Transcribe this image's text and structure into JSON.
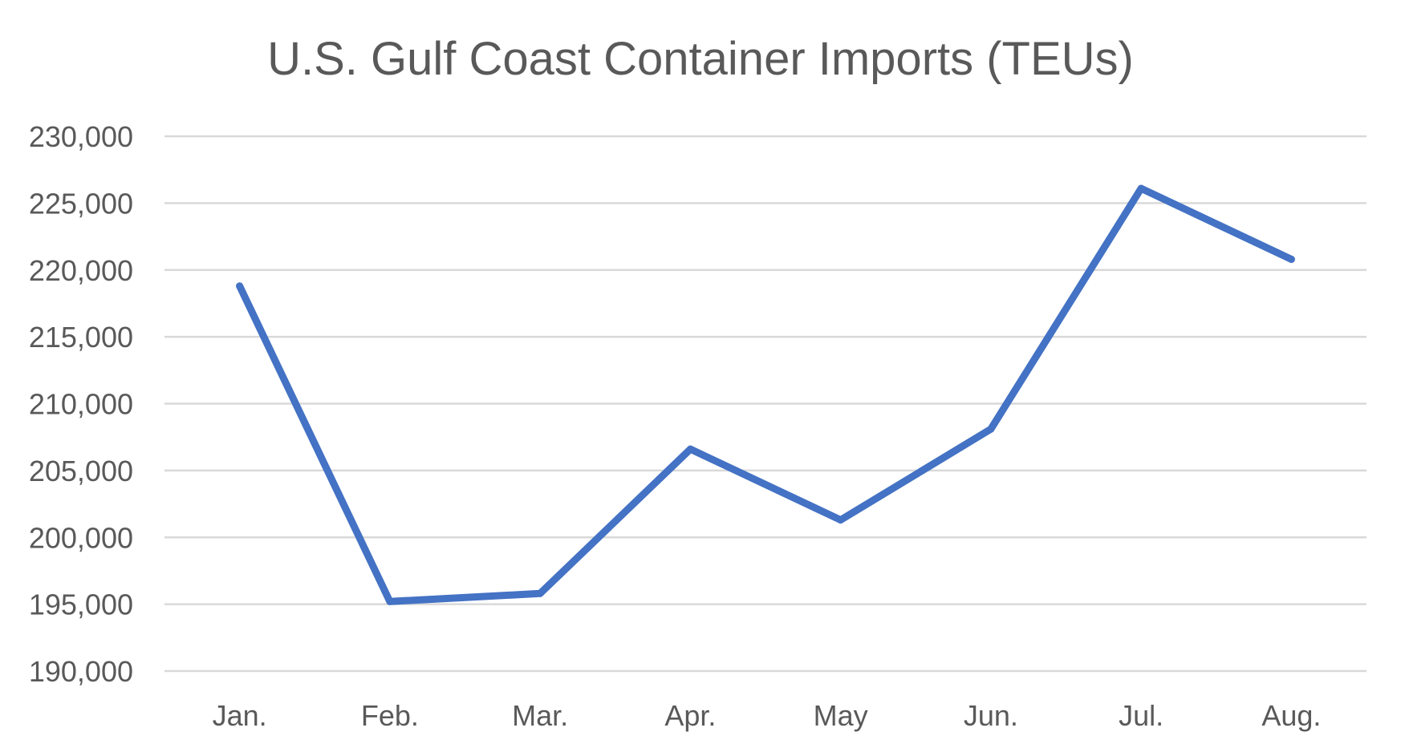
{
  "chart_data": {
    "type": "line",
    "title": "U.S. Gulf Coast Container Imports (TEUs)",
    "xlabel": "",
    "ylabel": "",
    "categories": [
      "Jan.",
      "Feb.",
      "Mar.",
      "Apr.",
      "May",
      "Jun.",
      "Jul.",
      "Aug."
    ],
    "series": [
      {
        "values": [
          218800,
          195200,
          195800,
          206600,
          201300,
          208100,
          226100,
          220800
        ],
        "color": "#4472c4"
      }
    ],
    "ylim": [
      190000,
      230000
    ],
    "y_ticks": [
      190000,
      195000,
      200000,
      205000,
      210000,
      215000,
      220000,
      225000,
      230000
    ],
    "y_tick_labels": [
      "190,000",
      "195,000",
      "200,000",
      "205,000",
      "210,000",
      "215,000",
      "220,000",
      "225,000",
      "230,000"
    ],
    "grid": true,
    "legend": "none"
  }
}
